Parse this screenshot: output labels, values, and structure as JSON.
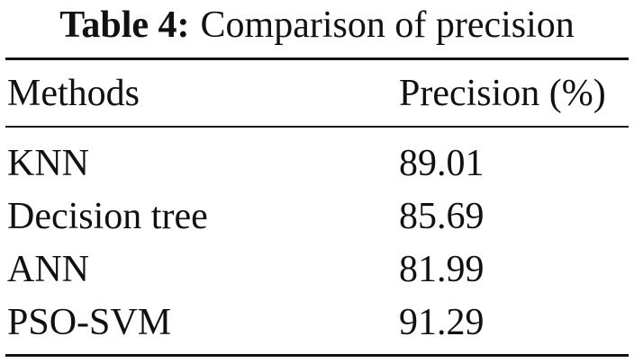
{
  "caption": {
    "label": "Table 4:",
    "text": "Comparison of precision"
  },
  "table": {
    "header": [
      "Methods",
      "Precision (%)"
    ],
    "rows": [
      [
        "KNN",
        "89.01"
      ],
      [
        "Decision tree",
        "85.69"
      ],
      [
        "ANN",
        "81.99"
      ],
      [
        "PSO-SVM",
        "91.29"
      ]
    ]
  }
}
